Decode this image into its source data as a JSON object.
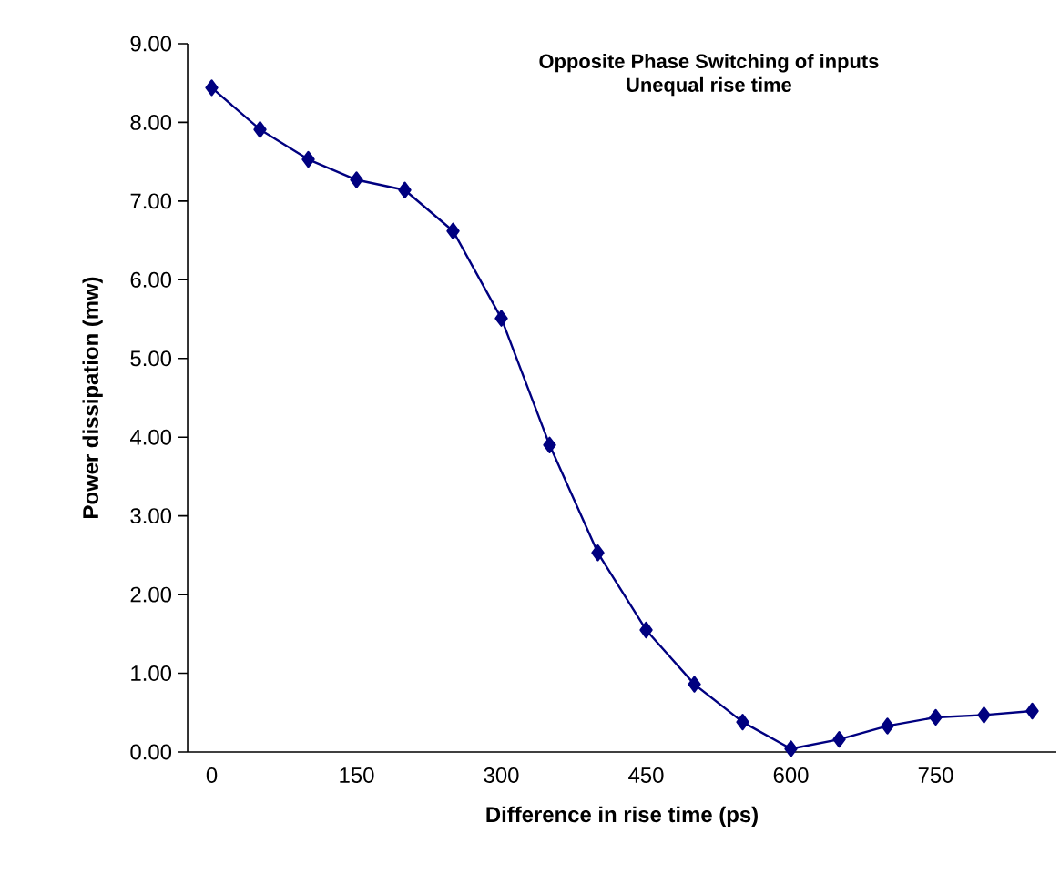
{
  "chart_data": {
    "type": "line",
    "title": "Opposite Phase Switching of inputs",
    "subtitle": "Unequal rise time",
    "xlabel": "Difference in rise time (ps)",
    "ylabel": "Power dissipation (mw)",
    "categories": [
      "0",
      null,
      null,
      "150",
      null,
      null,
      "300",
      null,
      null,
      "450",
      null,
      null,
      "600",
      null,
      null,
      "750",
      null,
      null
    ],
    "series": [
      {
        "color": "#000080",
        "values": [
          8.44,
          7.91,
          7.53,
          7.27,
          7.14,
          6.62,
          5.51,
          3.9,
          2.53,
          1.55,
          0.86,
          0.38,
          0.04,
          0.16,
          0.33,
          0.44,
          0.47,
          0.52
        ]
      }
    ],
    "ylim": [
      0,
      9
    ],
    "yticks": [
      {
        "value": 0,
        "label": "0.00"
      },
      {
        "value": 1,
        "label": "1.00"
      },
      {
        "value": 2,
        "label": "2.00"
      },
      {
        "value": 3,
        "label": "3.00"
      },
      {
        "value": 4,
        "label": "4.00"
      },
      {
        "value": 5,
        "label": "5.00"
      },
      {
        "value": 6,
        "label": "6.00"
      },
      {
        "value": 7,
        "label": "7.00"
      },
      {
        "value": 8,
        "label": "8.00"
      },
      {
        "value": 9,
        "label": "9.00"
      }
    ],
    "marker": "diamond",
    "line_style": "solid",
    "grid": false
  }
}
